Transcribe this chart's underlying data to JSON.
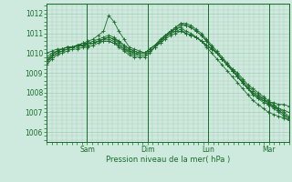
{
  "bg_color": "#ceeade",
  "grid_color": "#a8ccb8",
  "line_color": "#1a6b2a",
  "marker": "+",
  "title": "Pression niveau de la mer( hPa )",
  "ylabel_ticks": [
    1006,
    1007,
    1008,
    1009,
    1010,
    1011,
    1012
  ],
  "xlim": [
    0,
    96
  ],
  "ylim": [
    1005.5,
    1012.5
  ],
  "xtick_positions": [
    16,
    40,
    64,
    88
  ],
  "xtick_labels": [
    "Sam",
    "Dim",
    "Lun",
    "Mar"
  ],
  "vline_positions": [
    16,
    40,
    64,
    88
  ],
  "series": [
    [
      1009.5,
      1009.8,
      1010.0,
      1010.1,
      1010.2,
      1010.3,
      1010.4,
      1010.5,
      1010.6,
      1010.7,
      1010.9,
      1011.1,
      1011.9,
      1011.6,
      1011.1,
      1010.7,
      1010.3,
      1010.2,
      1010.1,
      1010.0,
      1010.2,
      1010.4,
      1010.5,
      1010.7,
      1010.9,
      1011.0,
      1011.1,
      1011.0,
      1010.9,
      1010.8,
      1010.6,
      1010.4,
      1010.2,
      1010.0,
      1009.7,
      1009.4,
      1009.1,
      1008.8,
      1008.5,
      1008.2,
      1007.9,
      1007.7,
      1007.6,
      1007.5,
      1007.5,
      1007.4,
      1007.4,
      1007.3
    ],
    [
      1009.8,
      1010.0,
      1010.1,
      1010.2,
      1010.3,
      1010.3,
      1010.4,
      1010.4,
      1010.5,
      1010.5,
      1010.6,
      1010.7,
      1010.8,
      1010.7,
      1010.6,
      1010.4,
      1010.2,
      1010.1,
      1010.0,
      1010.0,
      1010.2,
      1010.4,
      1010.6,
      1010.8,
      1011.0,
      1011.1,
      1011.2,
      1011.0,
      1010.9,
      1010.8,
      1010.6,
      1010.4,
      1010.2,
      1010.0,
      1009.7,
      1009.4,
      1009.1,
      1008.8,
      1008.5,
      1008.2,
      1007.9,
      1007.7,
      1007.5,
      1007.4,
      1007.3,
      1007.2,
      1007.1,
      1007.0
    ],
    [
      1009.6,
      1009.9,
      1010.1,
      1010.2,
      1010.3,
      1010.3,
      1010.4,
      1010.5,
      1010.5,
      1010.6,
      1010.7,
      1010.8,
      1010.9,
      1010.8,
      1010.6,
      1010.4,
      1010.2,
      1010.1,
      1010.0,
      1010.0,
      1010.2,
      1010.4,
      1010.7,
      1010.9,
      1011.1,
      1011.2,
      1011.3,
      1011.1,
      1011.0,
      1010.8,
      1010.6,
      1010.3,
      1010.0,
      1009.7,
      1009.4,
      1009.1,
      1008.8,
      1008.5,
      1008.2,
      1007.9,
      1007.6,
      1007.4,
      1007.2,
      1007.0,
      1006.9,
      1006.8,
      1006.7,
      1006.6
    ],
    [
      1009.7,
      1009.9,
      1010.1,
      1010.2,
      1010.3,
      1010.3,
      1010.4,
      1010.4,
      1010.5,
      1010.5,
      1010.6,
      1010.7,
      1010.8,
      1010.7,
      1010.5,
      1010.3,
      1010.1,
      1010.0,
      1009.9,
      1009.9,
      1010.1,
      1010.3,
      1010.5,
      1010.8,
      1011.1,
      1011.3,
      1011.5,
      1011.4,
      1011.3,
      1011.1,
      1010.9,
      1010.6,
      1010.3,
      1010.0,
      1009.7,
      1009.4,
      1009.1,
      1008.8,
      1008.5,
      1008.2,
      1008.0,
      1007.8,
      1007.7,
      1007.5,
      1007.3,
      1007.1,
      1006.9,
      1006.7
    ],
    [
      1009.6,
      1009.8,
      1010.0,
      1010.1,
      1010.2,
      1010.3,
      1010.3,
      1010.4,
      1010.4,
      1010.5,
      1010.6,
      1010.7,
      1010.7,
      1010.6,
      1010.4,
      1010.2,
      1010.0,
      1009.9,
      1009.9,
      1009.9,
      1010.1,
      1010.3,
      1010.6,
      1010.9,
      1011.1,
      1011.3,
      1011.5,
      1011.5,
      1011.4,
      1011.2,
      1011.0,
      1010.7,
      1010.4,
      1010.1,
      1009.8,
      1009.5,
      1009.2,
      1008.9,
      1008.6,
      1008.3,
      1008.1,
      1007.9,
      1007.7,
      1007.5,
      1007.3,
      1007.1,
      1006.9,
      1006.7
    ],
    [
      1009.4,
      1009.7,
      1009.9,
      1010.0,
      1010.1,
      1010.2,
      1010.2,
      1010.3,
      1010.3,
      1010.4,
      1010.5,
      1010.6,
      1010.6,
      1010.5,
      1010.3,
      1010.1,
      1009.9,
      1009.8,
      1009.8,
      1009.8,
      1010.0,
      1010.3,
      1010.6,
      1010.9,
      1011.1,
      1011.2,
      1011.4,
      1011.4,
      1011.3,
      1011.1,
      1010.9,
      1010.6,
      1010.3,
      1010.0,
      1009.7,
      1009.4,
      1009.1,
      1008.8,
      1008.5,
      1008.2,
      1008.0,
      1007.8,
      1007.6,
      1007.4,
      1007.2,
      1007.0,
      1006.8,
      1006.6
    ],
    [
      1010.0,
      1010.1,
      1010.2,
      1010.2,
      1010.3,
      1010.3,
      1010.4,
      1010.4,
      1010.5,
      1010.5,
      1010.6,
      1010.6,
      1010.6,
      1010.5,
      1010.4,
      1010.2,
      1010.1,
      1010.0,
      1010.0,
      1010.0,
      1010.2,
      1010.4,
      1010.6,
      1010.8,
      1011.0,
      1011.1,
      1011.1,
      1011.0,
      1010.9,
      1010.8,
      1010.6,
      1010.4,
      1010.2,
      1010.0,
      1009.7,
      1009.4,
      1009.2,
      1009.0,
      1008.7,
      1008.4,
      1008.2,
      1008.0,
      1007.8,
      1007.6,
      1007.4,
      1007.2,
      1007.0,
      1006.8
    ]
  ]
}
